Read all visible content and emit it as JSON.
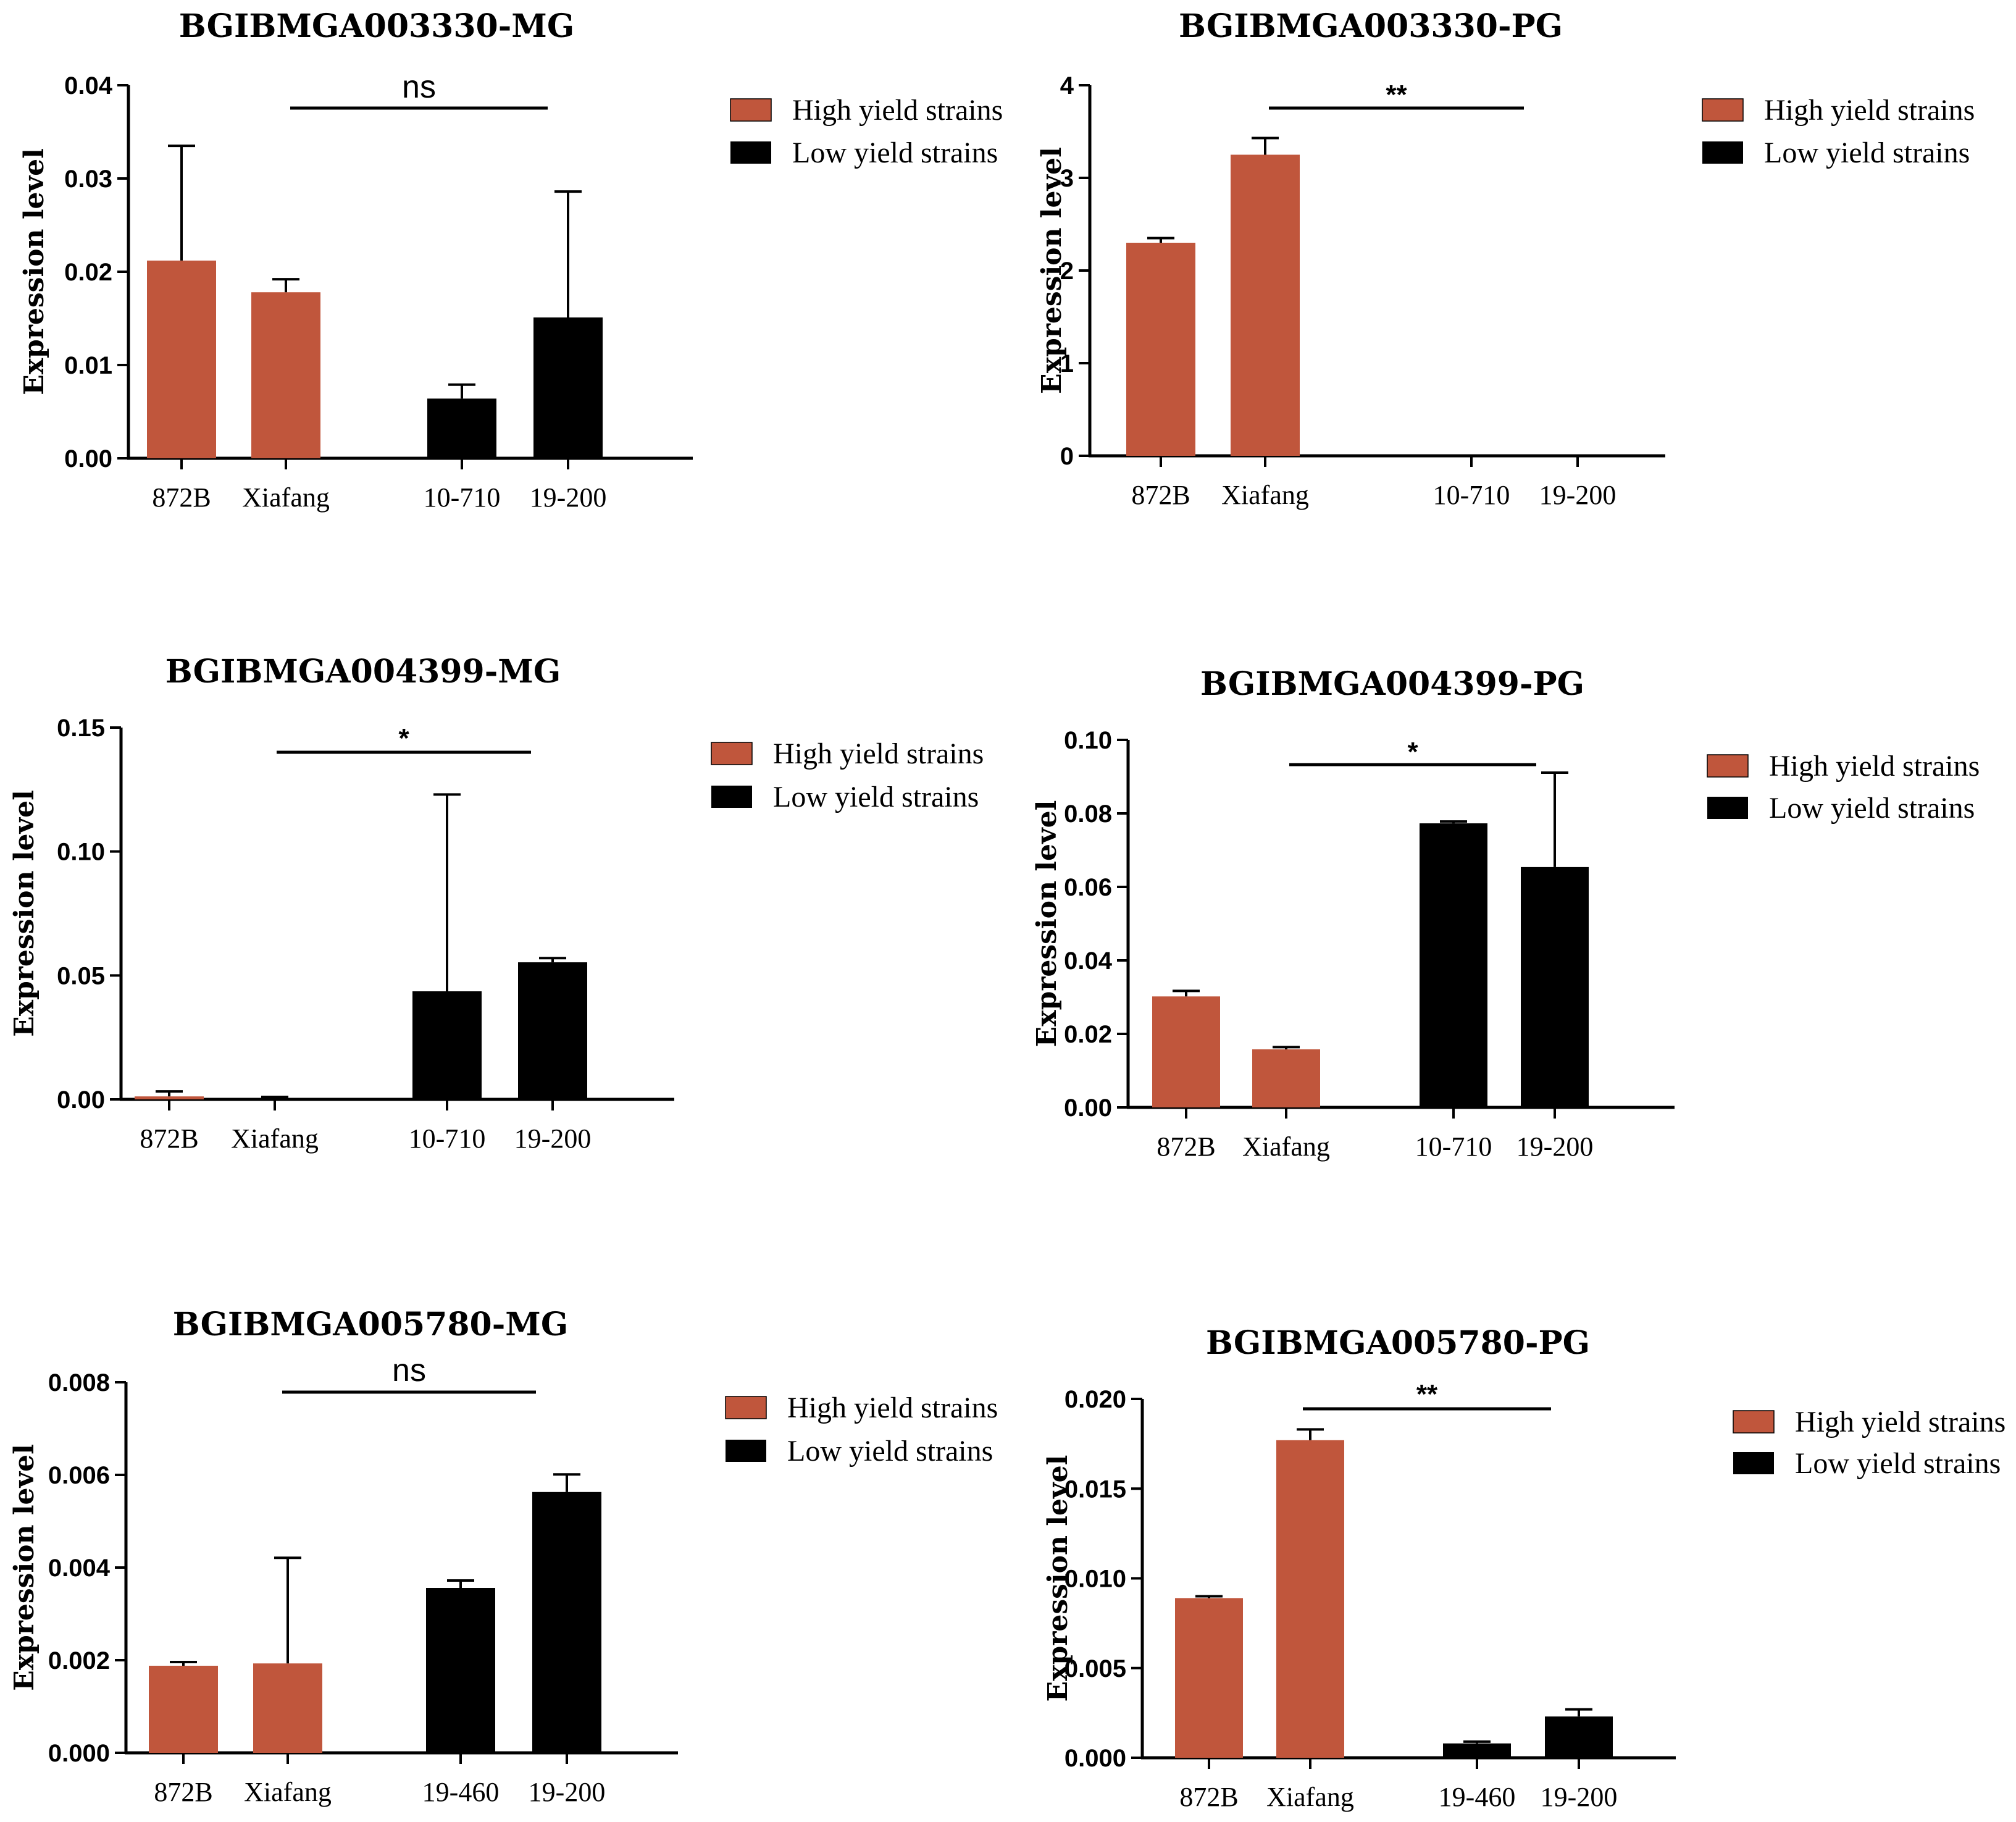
{
  "colors": {
    "high": "#c0563c",
    "low": "#000000",
    "axis": "#000000"
  },
  "chart_data": [
    {
      "type": "bar",
      "title": "BGIBMGA003330-MG",
      "ylabel": "Expression level",
      "categories": [
        "872B",
        "Xiafang",
        "10-710",
        "19-200"
      ],
      "values": [
        0.0212,
        0.0178,
        0.0064,
        0.0151
      ],
      "errors": [
        0.0123,
        0.0014,
        0.0015,
        0.0135
      ],
      "groups": [
        "high",
        "high",
        "low",
        "low"
      ],
      "ylim": [
        0,
        0.04
      ],
      "yticks": [
        "0.00",
        "0.01",
        "0.02",
        "0.03",
        "0.04"
      ],
      "significance": "ns",
      "legend": [
        "High yield strains",
        "Low yield strains"
      ]
    },
    {
      "type": "bar",
      "title": "BGIBMGA003330-PG",
      "ylabel": "Expression level",
      "categories": [
        "872B",
        "Xiafang",
        "10-710",
        "19-200"
      ],
      "values": [
        2.3,
        3.25,
        0,
        0
      ],
      "errors": [
        0.05,
        0.18,
        0,
        0
      ],
      "groups": [
        "high",
        "high",
        "low",
        "low"
      ],
      "ylim": [
        0,
        4
      ],
      "yticks": [
        "0",
        "1",
        "2",
        "3",
        "4"
      ],
      "significance": "**",
      "legend": [
        "High yield strains",
        "Low yield strains"
      ]
    },
    {
      "type": "bar",
      "title": "BGIBMGA004399-MG",
      "ylabel": "Expression level",
      "categories": [
        "872B",
        "Xiafang",
        "10-710",
        "19-200"
      ],
      "values": [
        0.0012,
        0,
        0.0436,
        0.0553
      ],
      "errors": [
        0.002,
        0.001,
        0.0794,
        0.0017
      ],
      "groups": [
        "high",
        "high",
        "low",
        "low"
      ],
      "ylim": [
        0,
        0.15
      ],
      "yticks": [
        "0.00",
        "0.05",
        "0.10",
        "0.15"
      ],
      "significance": "*",
      "legend": [
        "High yield strains",
        "Low yield strains"
      ]
    },
    {
      "type": "bar",
      "title": "BGIBMGA004399-PG",
      "ylabel": "Expression level",
      "categories": [
        "872B",
        "Xiafang",
        "10-710",
        "19-200"
      ],
      "values": [
        0.0302,
        0.0158,
        0.0773,
        0.0654
      ],
      "errors": [
        0.0015,
        0.0006,
        0.0005,
        0.0257
      ],
      "groups": [
        "high",
        "high",
        "low",
        "low"
      ],
      "ylim": [
        0,
        0.1
      ],
      "yticks": [
        "0.00",
        "0.02",
        "0.04",
        "0.06",
        "0.08",
        "0.10"
      ],
      "significance": "*",
      "legend": [
        "High yield strains",
        "Low yield strains"
      ]
    },
    {
      "type": "bar",
      "title": "BGIBMGA005780-MG",
      "ylabel": "Expression level",
      "categories": [
        "872B",
        "Xiafang",
        "19-460",
        "19-200"
      ],
      "values": [
        0.00188,
        0.00193,
        0.00356,
        0.00563
      ],
      "errors": [
        8e-05,
        0.00228,
        0.00016,
        0.00038
      ],
      "groups": [
        "high",
        "high",
        "low",
        "low"
      ],
      "ylim": [
        0,
        0.008
      ],
      "yticks": [
        "0.000",
        "0.002",
        "0.004",
        "0.006",
        "0.008"
      ],
      "significance": "ns",
      "legend": [
        "High yield strains",
        "Low yield strains"
      ]
    },
    {
      "type": "bar",
      "title": "BGIBMGA005780-PG",
      "ylabel": "Expression level",
      "categories": [
        "872B",
        "Xiafang",
        "19-460",
        "19-200"
      ],
      "values": [
        0.0089,
        0.0177,
        0.0008,
        0.0023
      ],
      "errors": [
        0.0001,
        0.0006,
        0.0001,
        0.0004
      ],
      "groups": [
        "high",
        "high",
        "low",
        "low"
      ],
      "ylim": [
        0,
        0.02
      ],
      "yticks": [
        "0.000",
        "0.005",
        "0.010",
        "0.015",
        "0.020"
      ],
      "significance": "**",
      "legend": [
        "High yield strains",
        "Low yield strains"
      ]
    }
  ]
}
